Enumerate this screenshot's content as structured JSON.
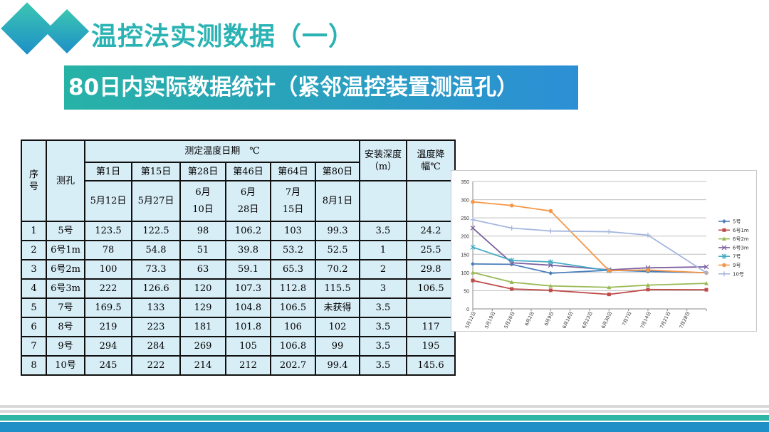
{
  "slide": {
    "title": "温控法实测数据（一）",
    "banner": "80日内实际数据统计（紧邻温控装置测温孔）"
  },
  "table": {
    "h_seq": "序号",
    "h_hole": "测孔",
    "h_group": "测定温度日期　℃",
    "h_depth": "安装深度（m）",
    "h_drop": "温度降幅℃",
    "days": [
      "第1日",
      "第15日",
      "第28日",
      "第46日",
      "第64日",
      "第80日"
    ],
    "dates": [
      "5月12日",
      "5月27日",
      "6月10日",
      "6月28日",
      "7月15日",
      "8月1日"
    ],
    "rows": [
      {
        "seq": "1",
        "hole": "5号",
        "v": [
          "123.5",
          "122.5",
          "98",
          "106.2",
          "103",
          "99.3"
        ],
        "depth": "3.5",
        "drop": "24.2"
      },
      {
        "seq": "2",
        "hole": "6号1m",
        "v": [
          "78",
          "54.8",
          "51",
          "39.8",
          "53.2",
          "52.5"
        ],
        "depth": "1",
        "drop": "25.5"
      },
      {
        "seq": "3",
        "hole": "6号2m",
        "v": [
          "100",
          "73.3",
          "63",
          "59.1",
          "65.3",
          "70.2"
        ],
        "depth": "2",
        "drop": "29.8"
      },
      {
        "seq": "4",
        "hole": "6号3m",
        "v": [
          "222",
          "126.6",
          "120",
          "107.3",
          "112.8",
          "115.5"
        ],
        "depth": "3",
        "drop": "106.5"
      },
      {
        "seq": "5",
        "hole": "7号",
        "v": [
          "169.5",
          "133",
          "129",
          "104.8",
          "106.5",
          "未获得"
        ],
        "depth": "3.5",
        "drop": ""
      },
      {
        "seq": "6",
        "hole": "8号",
        "v": [
          "219",
          "223",
          "181",
          "101.8",
          "106",
          "102"
        ],
        "depth": "3.5",
        "drop": "117"
      },
      {
        "seq": "7",
        "hole": "9号",
        "v": [
          "294",
          "284",
          "269",
          "105",
          "106.8",
          "99"
        ],
        "depth": "3.5",
        "drop": "195"
      },
      {
        "seq": "8",
        "hole": "10号",
        "v": [
          "245",
          "222",
          "214",
          "212",
          "202.7",
          "99.4"
        ],
        "depth": "3.5",
        "drop": "145.6"
      }
    ]
  },
  "chart_data": {
    "type": "line",
    "x": [
      "5月12日",
      "5月19日",
      "5月26日",
      "6月2日",
      "6月9日",
      "6月16日",
      "6月23日",
      "6月30日",
      "7月7日",
      "7月14日",
      "7月21日",
      "7月28日"
    ],
    "ylim": [
      0,
      350
    ],
    "yticks": [
      "0",
      "50",
      "100",
      "150",
      "200",
      "250",
      "300",
      "350"
    ],
    "grid": true,
    "legend_position": "right",
    "series": [
      {
        "name": "5号",
        "color": "#4a7ebb",
        "marker": "diamond",
        "points": [
          [
            0,
            123.5
          ],
          [
            2,
            122.5
          ],
          [
            4,
            98
          ],
          [
            7,
            106.2
          ],
          [
            9,
            103
          ],
          [
            12,
            99.3
          ]
        ]
      },
      {
        "name": "6号1m",
        "color": "#be4b48",
        "marker": "square",
        "points": [
          [
            0,
            78
          ],
          [
            2,
            54.8
          ],
          [
            4,
            51
          ],
          [
            7,
            39.8
          ],
          [
            9,
            53.2
          ],
          [
            12,
            52.5
          ]
        ]
      },
      {
        "name": "6号2m",
        "color": "#98b954",
        "marker": "triangle",
        "points": [
          [
            0,
            100
          ],
          [
            2,
            73.3
          ],
          [
            4,
            63
          ],
          [
            7,
            59.1
          ],
          [
            9,
            65.3
          ],
          [
            12,
            70.2
          ]
        ]
      },
      {
        "name": "6号3m",
        "color": "#7d60a0",
        "marker": "x",
        "points": [
          [
            0,
            222
          ],
          [
            2,
            126.6
          ],
          [
            4,
            120
          ],
          [
            7,
            107.3
          ],
          [
            9,
            112.8
          ],
          [
            12,
            115.5
          ]
        ]
      },
      {
        "name": "7号",
        "color": "#46aac5",
        "marker": "star",
        "points": [
          [
            0,
            169.5
          ],
          [
            2,
            133
          ],
          [
            4,
            129
          ],
          [
            7,
            104.8
          ],
          [
            9,
            106.5
          ]
        ]
      },
      {
        "name": "9号",
        "color": "#f79646",
        "marker": "circle",
        "points": [
          [
            0,
            294
          ],
          [
            2,
            284
          ],
          [
            4,
            269
          ],
          [
            7,
            105
          ],
          [
            9,
            106.8
          ],
          [
            12,
            99
          ]
        ]
      },
      {
        "name": "10号",
        "color": "#a5b6dd",
        "marker": "plus",
        "points": [
          [
            0,
            245
          ],
          [
            2,
            222
          ],
          [
            4,
            214
          ],
          [
            7,
            212
          ],
          [
            9,
            202.7
          ],
          [
            12,
            99.4
          ]
        ]
      }
    ]
  }
}
